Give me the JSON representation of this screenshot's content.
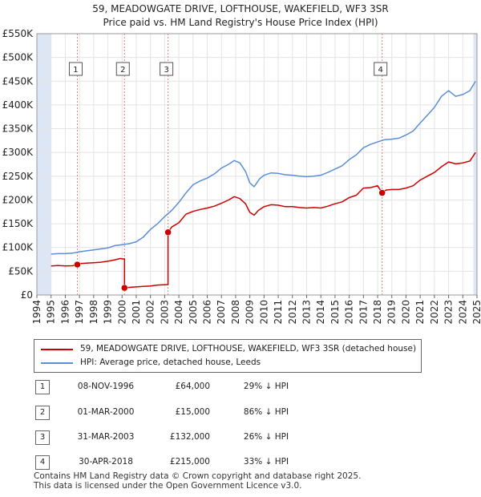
{
  "title_line1": "59, MEADOWGATE DRIVE, LOFTHOUSE, WAKEFIELD, WF3 3SR",
  "title_line2": "Price paid vs. HM Land Registry's House Price Index (HPI)",
  "colors": {
    "property": "#cc0000",
    "hpi": "#5b8ed6",
    "marker_line": "#e08080",
    "shade": "#dde6f4"
  },
  "chart_data": {
    "type": "line",
    "xlim": [
      1994,
      2025
    ],
    "ylim": [
      0,
      550000
    ],
    "xticks": [
      "1994",
      "1995",
      "1996",
      "1997",
      "1998",
      "1999",
      "2000",
      "2001",
      "2002",
      "2003",
      "2004",
      "2005",
      "2006",
      "2007",
      "2008",
      "2009",
      "2010",
      "2011",
      "2012",
      "2013",
      "2014",
      "2015",
      "2016",
      "2017",
      "2018",
      "2019",
      "2020",
      "2021",
      "2022",
      "2023",
      "2024",
      "2025"
    ],
    "yticks": [
      {
        "value": 0,
        "label": "£0"
      },
      {
        "value": 50000,
        "label": "£50K"
      },
      {
        "value": 100000,
        "label": "£100K"
      },
      {
        "value": 150000,
        "label": "£150K"
      },
      {
        "value": 200000,
        "label": "£200K"
      },
      {
        "value": 250000,
        "label": "£250K"
      },
      {
        "value": 300000,
        "label": "£300K"
      },
      {
        "value": 350000,
        "label": "£350K"
      },
      {
        "value": 400000,
        "label": "£400K"
      },
      {
        "value": 450000,
        "label": "£450K"
      },
      {
        "value": 500000,
        "label": "£500K"
      },
      {
        "value": 550000,
        "label": "£550K"
      }
    ],
    "shaded_periods": [
      [
        1994,
        1995
      ],
      [
        2024.75,
        2025
      ]
    ],
    "series": [
      {
        "name": "59, MEADOWGATE DRIVE, LOFTHOUSE, WAKEFIELD, WF3 3SR (detached house)",
        "color": "#cc0000",
        "points": [
          [
            1995.0,
            61000
          ],
          [
            1995.5,
            62000
          ],
          [
            1996.0,
            61000
          ],
          [
            1996.5,
            61500
          ],
          [
            1996.85,
            64000
          ],
          [
            1997.0,
            66000
          ],
          [
            1997.5,
            67000
          ],
          [
            1998.0,
            68000
          ],
          [
            1998.5,
            69000
          ],
          [
            1999.0,
            71000
          ],
          [
            1999.5,
            74000
          ],
          [
            1999.9,
            77000
          ],
          [
            2000.0,
            76000
          ],
          [
            2000.17,
            76000
          ],
          [
            2000.17,
            15000
          ],
          [
            2000.5,
            16000
          ],
          [
            2001.0,
            17000
          ],
          [
            2001.5,
            18000
          ],
          [
            2002.0,
            19000
          ],
          [
            2002.5,
            21000
          ],
          [
            2003.24,
            22000
          ],
          [
            2003.24,
            132000
          ],
          [
            2003.5,
            143000
          ],
          [
            2004.0,
            152000
          ],
          [
            2004.5,
            170000
          ],
          [
            2005.0,
            176000
          ],
          [
            2005.5,
            180000
          ],
          [
            2006.0,
            183000
          ],
          [
            2006.5,
            187000
          ],
          [
            2007.0,
            193000
          ],
          [
            2007.5,
            200000
          ],
          [
            2007.9,
            207000
          ],
          [
            2008.3,
            203000
          ],
          [
            2008.7,
            192000
          ],
          [
            2009.0,
            174000
          ],
          [
            2009.3,
            168000
          ],
          [
            2009.6,
            178000
          ],
          [
            2010.0,
            186000
          ],
          [
            2010.5,
            190000
          ],
          [
            2011.0,
            189000
          ],
          [
            2011.5,
            186000
          ],
          [
            2012.0,
            186000
          ],
          [
            2012.5,
            184000
          ],
          [
            2013.0,
            183000
          ],
          [
            2013.5,
            184000
          ],
          [
            2014.0,
            183000
          ],
          [
            2014.5,
            187000
          ],
          [
            2015.0,
            192000
          ],
          [
            2015.5,
            196000
          ],
          [
            2016.0,
            205000
          ],
          [
            2016.5,
            210000
          ],
          [
            2017.0,
            225000
          ],
          [
            2017.5,
            226000
          ],
          [
            2018.0,
            230000
          ],
          [
            2018.32,
            215000
          ],
          [
            2018.6,
            221000
          ],
          [
            2019.0,
            222000
          ],
          [
            2019.5,
            222000
          ],
          [
            2020.0,
            225000
          ],
          [
            2020.5,
            230000
          ],
          [
            2021.0,
            242000
          ],
          [
            2021.5,
            250000
          ],
          [
            2022.0,
            258000
          ],
          [
            2022.5,
            270000
          ],
          [
            2023.0,
            280000
          ],
          [
            2023.5,
            276000
          ],
          [
            2024.0,
            278000
          ],
          [
            2024.5,
            282000
          ],
          [
            2024.9,
            300000
          ]
        ]
      },
      {
        "name": "HPI: Average price, detached house, Leeds",
        "color": "#5b8ed6",
        "points": [
          [
            1995.0,
            86000
          ],
          [
            1995.5,
            87000
          ],
          [
            1996.0,
            87000
          ],
          [
            1996.5,
            88000
          ],
          [
            1997.0,
            91000
          ],
          [
            1997.5,
            93000
          ],
          [
            1998.0,
            95000
          ],
          [
            1998.5,
            97000
          ],
          [
            1999.0,
            99000
          ],
          [
            1999.5,
            104000
          ],
          [
            2000.0,
            106000
          ],
          [
            2000.5,
            108000
          ],
          [
            2001.0,
            112000
          ],
          [
            2001.5,
            122000
          ],
          [
            2002.0,
            138000
          ],
          [
            2002.5,
            150000
          ],
          [
            2003.0,
            165000
          ],
          [
            2003.5,
            178000
          ],
          [
            2004.0,
            195000
          ],
          [
            2004.5,
            215000
          ],
          [
            2005.0,
            232000
          ],
          [
            2005.5,
            240000
          ],
          [
            2006.0,
            246000
          ],
          [
            2006.5,
            255000
          ],
          [
            2007.0,
            267000
          ],
          [
            2007.5,
            275000
          ],
          [
            2007.9,
            283000
          ],
          [
            2008.3,
            278000
          ],
          [
            2008.7,
            260000
          ],
          [
            2009.0,
            236000
          ],
          [
            2009.3,
            228000
          ],
          [
            2009.7,
            245000
          ],
          [
            2010.0,
            252000
          ],
          [
            2010.5,
            257000
          ],
          [
            2011.0,
            256000
          ],
          [
            2011.5,
            253000
          ],
          [
            2012.0,
            252000
          ],
          [
            2012.5,
            250000
          ],
          [
            2013.0,
            249000
          ],
          [
            2013.5,
            250000
          ],
          [
            2014.0,
            252000
          ],
          [
            2014.5,
            258000
          ],
          [
            2015.0,
            265000
          ],
          [
            2015.5,
            272000
          ],
          [
            2016.0,
            285000
          ],
          [
            2016.5,
            295000
          ],
          [
            2017.0,
            310000
          ],
          [
            2017.5,
            317000
          ],
          [
            2018.0,
            322000
          ],
          [
            2018.5,
            327000
          ],
          [
            2019.0,
            328000
          ],
          [
            2019.5,
            330000
          ],
          [
            2020.0,
            337000
          ],
          [
            2020.5,
            345000
          ],
          [
            2021.0,
            362000
          ],
          [
            2021.5,
            378000
          ],
          [
            2022.0,
            395000
          ],
          [
            2022.5,
            418000
          ],
          [
            2023.0,
            430000
          ],
          [
            2023.5,
            418000
          ],
          [
            2024.0,
            422000
          ],
          [
            2024.5,
            430000
          ],
          [
            2024.9,
            450000
          ]
        ]
      }
    ],
    "sales": [
      {
        "id": "1",
        "x": 1996.85,
        "price": 64000
      },
      {
        "id": "2",
        "x": 2000.17,
        "price": 15000
      },
      {
        "id": "3",
        "x": 2003.24,
        "price": 132000
      },
      {
        "id": "4",
        "x": 2018.32,
        "price": 215000
      }
    ]
  },
  "legend": {
    "property": "59, MEADOWGATE DRIVE, LOFTHOUSE, WAKEFIELD, WF3 3SR (detached house)",
    "hpi": "HPI: Average price, detached house, Leeds"
  },
  "transactions": [
    {
      "num": "1",
      "date": "08-NOV-1996",
      "price": "£64,000",
      "hpi": "29% ↓ HPI"
    },
    {
      "num": "2",
      "date": "01-MAR-2000",
      "price": "£15,000",
      "hpi": "86% ↓ HPI"
    },
    {
      "num": "3",
      "date": "31-MAR-2003",
      "price": "£132,000",
      "hpi": "26% ↓ HPI"
    },
    {
      "num": "4",
      "date": "30-APR-2018",
      "price": "£215,000",
      "hpi": "33% ↓ HPI"
    }
  ],
  "footer": {
    "line1": "Contains HM Land Registry data © Crown copyright and database right 2025.",
    "line2": "This data is licensed under the Open Government Licence v3.0."
  }
}
